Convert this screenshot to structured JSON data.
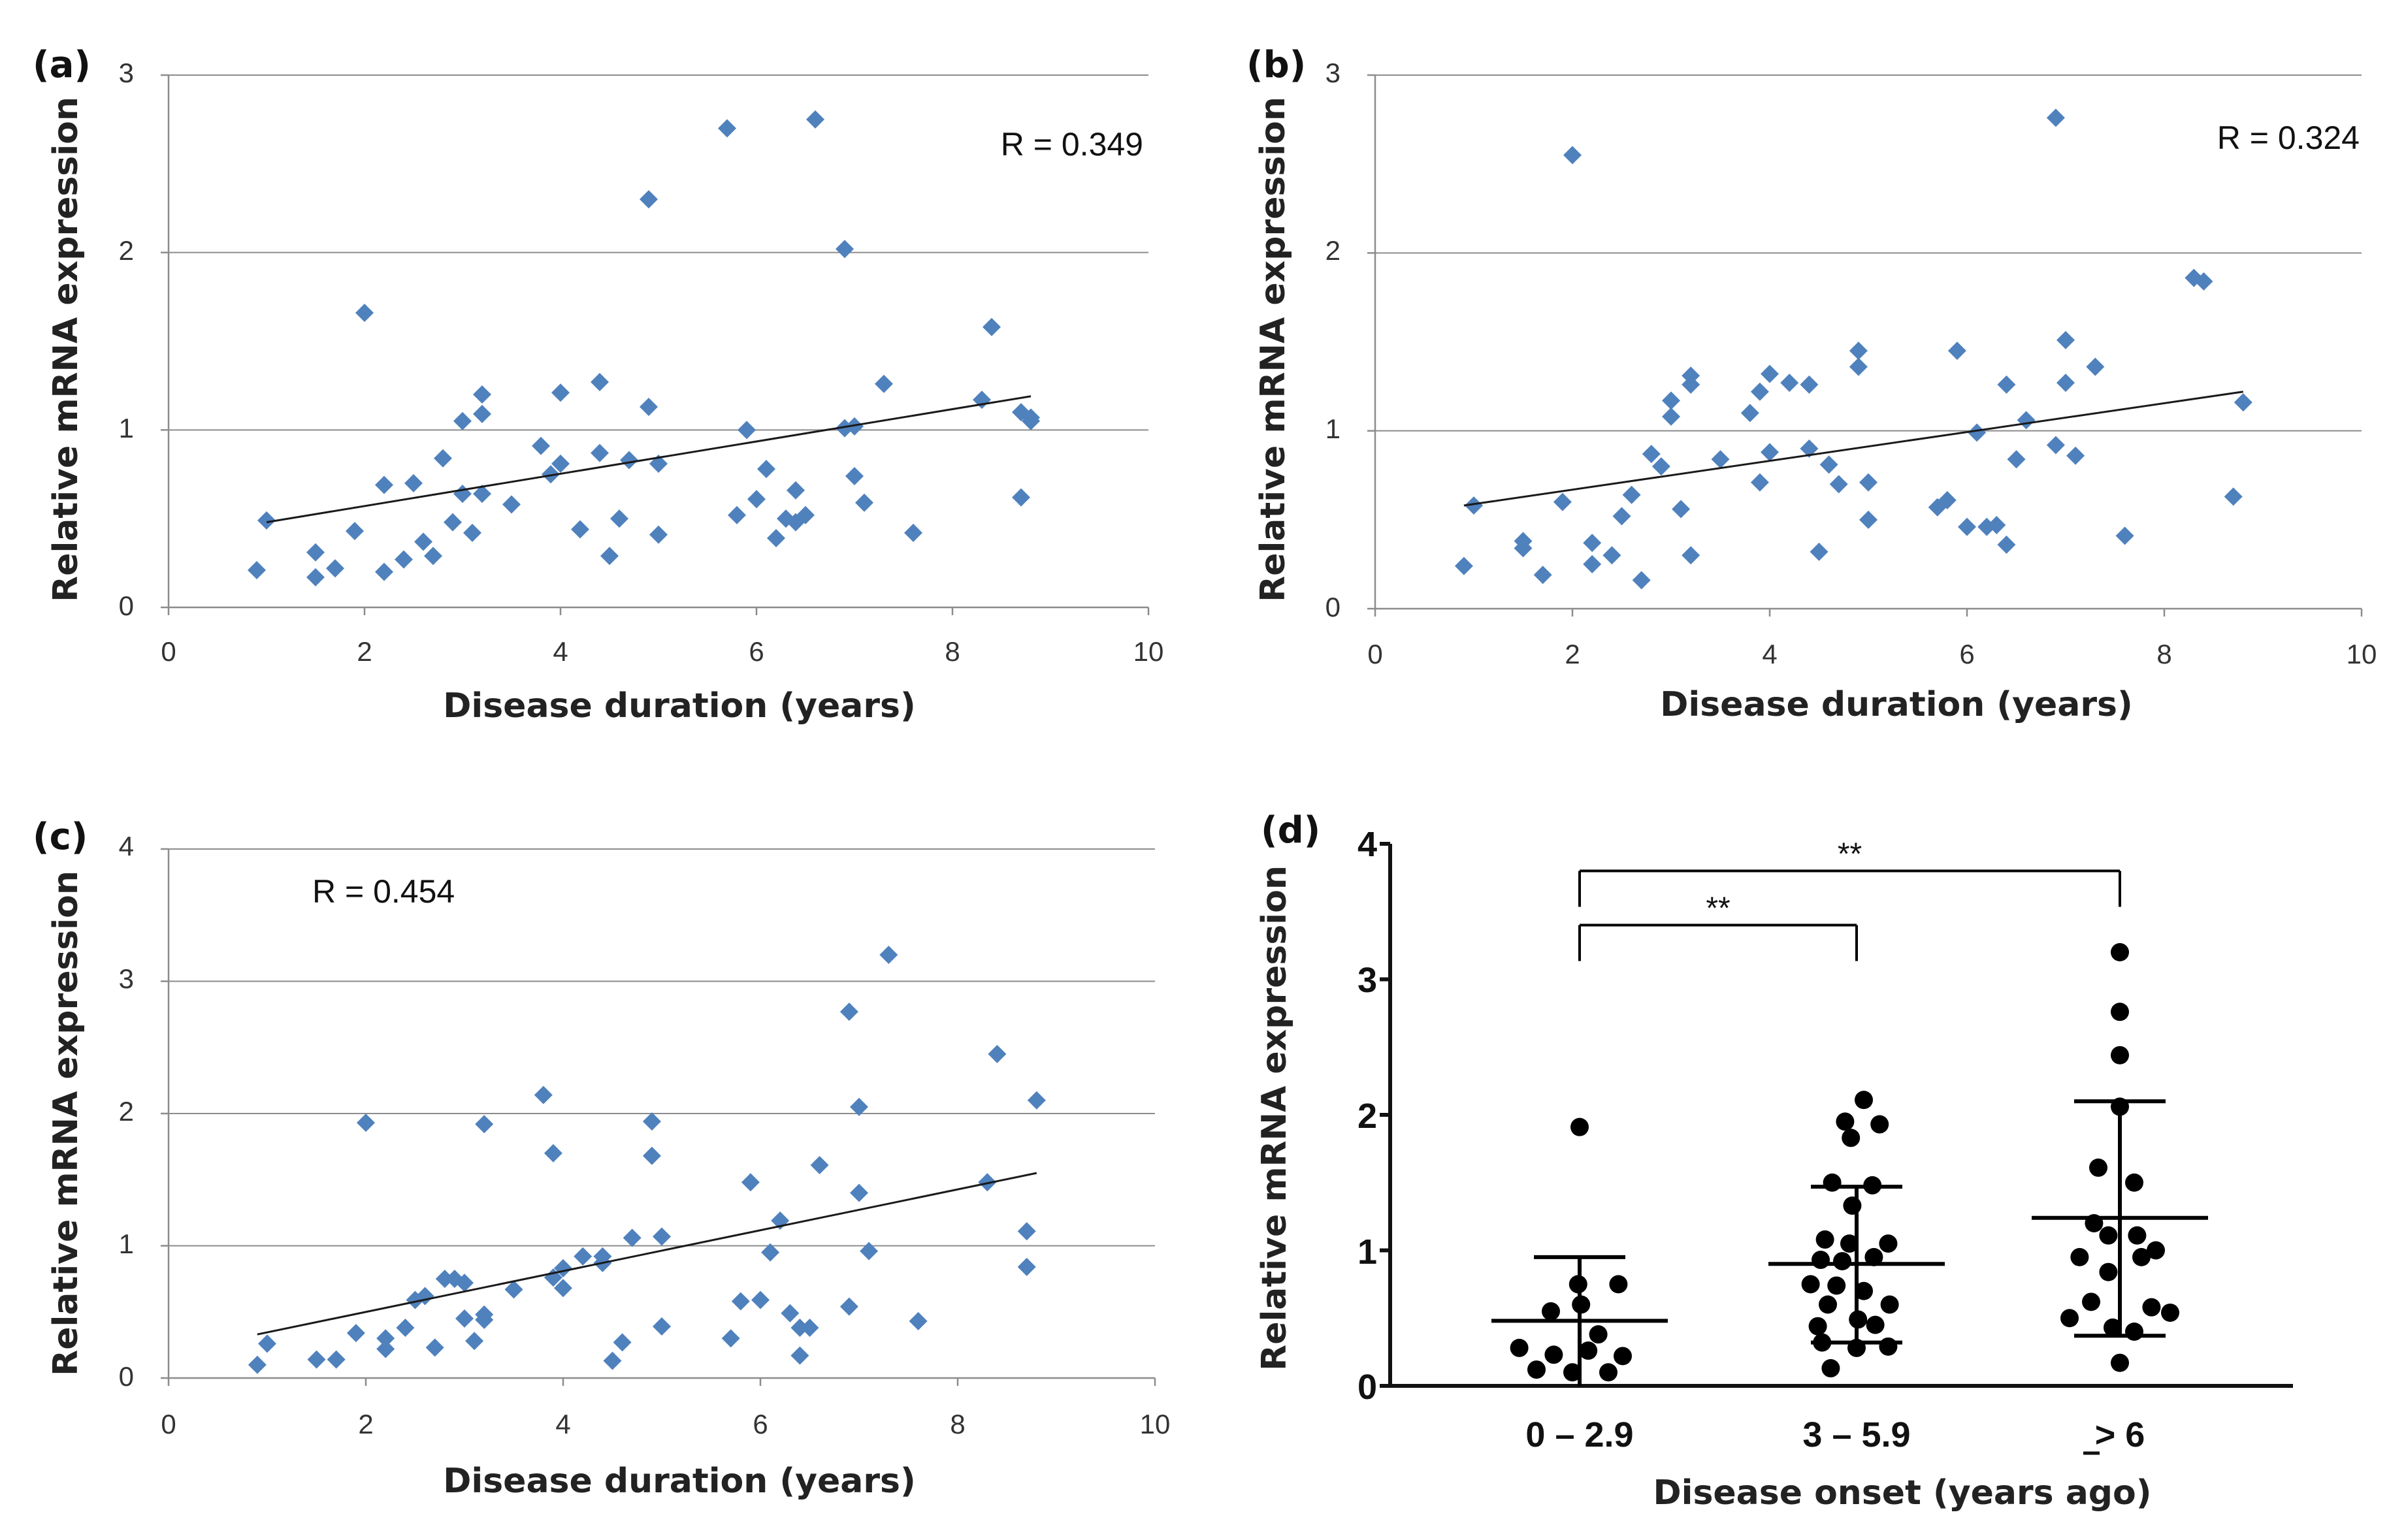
{
  "colors": {
    "diamond": "#4f81bd",
    "dot": "#000000",
    "grid": "#8c8c8c",
    "axis": "#8c8c8c",
    "trend": "#1a1a1a"
  },
  "chart_data": [
    {
      "type": "scatter",
      "panel_label": "(a)",
      "annotation": "R = 0.349",
      "xlabel": "Disease duration (years)",
      "ylabel": "Relative mRNA expression",
      "xlim": [
        0,
        10
      ],
      "ylim": [
        0,
        3
      ],
      "x_ticks": [
        "0",
        "2",
        "4",
        "6",
        "8",
        "10"
      ],
      "y_ticks": [
        "0",
        "1",
        "2",
        "3"
      ],
      "grid": true,
      "trendline": {
        "x": [
          1,
          8.8
        ],
        "y": [
          0.48,
          1.19
        ]
      },
      "points": [
        [
          0.9,
          0.21
        ],
        [
          1.0,
          0.49
        ],
        [
          1.5,
          0.31
        ],
        [
          1.5,
          0.17
        ],
        [
          1.7,
          0.22
        ],
        [
          1.9,
          0.43
        ],
        [
          2.0,
          1.66
        ],
        [
          2.2,
          0.69
        ],
        [
          2.2,
          0.2
        ],
        [
          2.4,
          0.27
        ],
        [
          2.5,
          0.7
        ],
        [
          2.6,
          0.37
        ],
        [
          2.7,
          0.29
        ],
        [
          2.8,
          0.84
        ],
        [
          2.9,
          0.48
        ],
        [
          3.0,
          1.05
        ],
        [
          3.0,
          0.64
        ],
        [
          3.1,
          0.42
        ],
        [
          3.2,
          1.2
        ],
        [
          3.2,
          1.09
        ],
        [
          3.2,
          0.64
        ],
        [
          3.5,
          0.58
        ],
        [
          3.8,
          0.91
        ],
        [
          3.9,
          0.75
        ],
        [
          4.0,
          1.21
        ],
        [
          4.0,
          0.81
        ],
        [
          4.2,
          0.44
        ],
        [
          4.4,
          1.27
        ],
        [
          4.4,
          0.87
        ],
        [
          4.5,
          0.29
        ],
        [
          4.6,
          0.5
        ],
        [
          4.7,
          0.83
        ],
        [
          4.9,
          2.3
        ],
        [
          4.9,
          1.13
        ],
        [
          5.0,
          0.41
        ],
        [
          5.0,
          0.81
        ],
        [
          5.7,
          2.7
        ],
        [
          5.8,
          0.52
        ],
        [
          5.9,
          1.0
        ],
        [
          6.0,
          0.61
        ],
        [
          6.1,
          0.78
        ],
        [
          6.2,
          0.39
        ],
        [
          6.3,
          0.5
        ],
        [
          6.4,
          0.66
        ],
        [
          6.4,
          0.48
        ],
        [
          6.5,
          0.52
        ],
        [
          6.6,
          2.75
        ],
        [
          6.9,
          2.02
        ],
        [
          6.9,
          1.01
        ],
        [
          7.0,
          1.02
        ],
        [
          7.0,
          0.74
        ],
        [
          7.1,
          0.59
        ],
        [
          7.3,
          1.26
        ],
        [
          7.6,
          0.42
        ],
        [
          8.3,
          1.17
        ],
        [
          8.4,
          1.58
        ],
        [
          8.7,
          1.1
        ],
        [
          8.7,
          0.62
        ],
        [
          8.8,
          1.07
        ],
        [
          8.8,
          1.05
        ]
      ]
    },
    {
      "type": "scatter",
      "panel_label": "(b)",
      "annotation": "R = 0.324",
      "xlabel": "Disease duration (years)",
      "ylabel": "Relative mRNA expression",
      "xlim": [
        0,
        10
      ],
      "ylim": [
        0,
        3
      ],
      "x_ticks": [
        "0",
        "2",
        "4",
        "6",
        "8",
        "10"
      ],
      "y_ticks": [
        "0",
        "1",
        "2",
        "3"
      ],
      "grid": true,
      "trendline": {
        "x": [
          0.9,
          8.8
        ],
        "y": [
          0.58,
          1.22
        ]
      },
      "points": [
        [
          0.9,
          0.24
        ],
        [
          1.0,
          0.58
        ],
        [
          1.5,
          0.38
        ],
        [
          1.5,
          0.34
        ],
        [
          1.7,
          0.19
        ],
        [
          1.9,
          0.6
        ],
        [
          2.0,
          2.55
        ],
        [
          2.2,
          0.37
        ],
        [
          2.2,
          0.25
        ],
        [
          2.4,
          0.3
        ],
        [
          2.5,
          0.52
        ],
        [
          2.6,
          0.64
        ],
        [
          2.7,
          0.16
        ],
        [
          2.8,
          0.87
        ],
        [
          2.9,
          0.8
        ],
        [
          3.0,
          1.17
        ],
        [
          3.0,
          1.08
        ],
        [
          3.1,
          0.56
        ],
        [
          3.2,
          1.31
        ],
        [
          3.2,
          1.26
        ],
        [
          3.2,
          0.3
        ],
        [
          3.5,
          0.84
        ],
        [
          3.8,
          1.1
        ],
        [
          3.9,
          1.22
        ],
        [
          3.9,
          0.71
        ],
        [
          4.0,
          1.32
        ],
        [
          4.0,
          0.88
        ],
        [
          4.2,
          1.27
        ],
        [
          4.4,
          1.26
        ],
        [
          4.4,
          0.9
        ],
        [
          4.5,
          0.32
        ],
        [
          4.6,
          0.81
        ],
        [
          4.7,
          0.7
        ],
        [
          4.9,
          1.45
        ],
        [
          4.9,
          1.36
        ],
        [
          5.0,
          0.71
        ],
        [
          5.0,
          0.5
        ],
        [
          5.7,
          0.57
        ],
        [
          5.8,
          0.61
        ],
        [
          5.9,
          1.45
        ],
        [
          6.0,
          0.46
        ],
        [
          6.1,
          0.99
        ],
        [
          6.2,
          0.46
        ],
        [
          6.3,
          0.47
        ],
        [
          6.4,
          1.26
        ],
        [
          6.4,
          0.36
        ],
        [
          6.5,
          0.84
        ],
        [
          6.6,
          1.06
        ],
        [
          6.9,
          2.76
        ],
        [
          6.9,
          0.92
        ],
        [
          7.0,
          1.51
        ],
        [
          7.0,
          1.27
        ],
        [
          7.1,
          0.86
        ],
        [
          7.3,
          1.36
        ],
        [
          7.6,
          0.41
        ],
        [
          8.3,
          1.86
        ],
        [
          8.4,
          1.84
        ],
        [
          8.7,
          0.63
        ],
        [
          8.8,
          1.16
        ]
      ]
    },
    {
      "type": "scatter",
      "panel_label": "(c)",
      "annotation": "R = 0.454",
      "xlabel": "Disease duration (years)",
      "ylabel": "Relative mRNA expression",
      "xlim": [
        0,
        10
      ],
      "ylim": [
        0,
        4
      ],
      "x_ticks": [
        "0",
        "2",
        "4",
        "6",
        "8",
        "10"
      ],
      "y_ticks": [
        "0",
        "1",
        "2",
        "3",
        "4"
      ],
      "grid": true,
      "trendline": {
        "x": [
          0.9,
          8.8
        ],
        "y": [
          0.33,
          1.55
        ]
      },
      "points": [
        [
          0.9,
          0.1
        ],
        [
          1.0,
          0.26
        ],
        [
          1.5,
          0.14
        ],
        [
          1.7,
          0.14
        ],
        [
          1.9,
          0.34
        ],
        [
          2.0,
          1.93
        ],
        [
          2.2,
          0.3
        ],
        [
          2.2,
          0.22
        ],
        [
          2.4,
          0.38
        ],
        [
          2.5,
          0.59
        ],
        [
          2.6,
          0.62
        ],
        [
          2.7,
          0.23
        ],
        [
          2.8,
          0.75
        ],
        [
          2.9,
          0.75
        ],
        [
          3.0,
          0.72
        ],
        [
          3.0,
          0.45
        ],
        [
          3.1,
          0.28
        ],
        [
          3.2,
          1.92
        ],
        [
          3.2,
          0.48
        ],
        [
          3.2,
          0.44
        ],
        [
          3.5,
          0.67
        ],
        [
          3.8,
          2.14
        ],
        [
          3.9,
          1.7
        ],
        [
          3.9,
          0.76
        ],
        [
          4.0,
          0.83
        ],
        [
          4.0,
          0.68
        ],
        [
          4.2,
          0.92
        ],
        [
          4.4,
          0.92
        ],
        [
          4.4,
          0.87
        ],
        [
          4.5,
          0.13
        ],
        [
          4.6,
          0.27
        ],
        [
          4.7,
          1.06
        ],
        [
          4.9,
          1.94
        ],
        [
          4.9,
          1.68
        ],
        [
          5.0,
          1.07
        ],
        [
          5.0,
          0.39
        ],
        [
          5.7,
          0.3
        ],
        [
          5.8,
          0.58
        ],
        [
          5.9,
          1.48
        ],
        [
          6.0,
          0.59
        ],
        [
          6.1,
          0.95
        ],
        [
          6.2,
          1.19
        ],
        [
          6.3,
          0.49
        ],
        [
          6.4,
          0.38
        ],
        [
          6.4,
          0.17
        ],
        [
          6.5,
          0.38
        ],
        [
          6.6,
          1.61
        ],
        [
          6.9,
          2.77
        ],
        [
          6.9,
          0.54
        ],
        [
          7.0,
          2.05
        ],
        [
          7.0,
          1.4
        ],
        [
          7.1,
          0.96
        ],
        [
          7.3,
          3.2
        ],
        [
          7.6,
          0.43
        ],
        [
          8.3,
          1.48
        ],
        [
          8.4,
          2.45
        ],
        [
          8.7,
          1.11
        ],
        [
          8.7,
          0.84
        ],
        [
          8.8,
          2.1
        ]
      ]
    },
    {
      "type": "scatter",
      "subtype": "dot-plot",
      "panel_label": "(d)",
      "xlabel": "Disease onset (years ago)",
      "ylabel": "Relative mRNA expression",
      "ylim": [
        0,
        4
      ],
      "y_ticks": [
        "0",
        "1",
        "2",
        "3",
        "4"
      ],
      "grid": false,
      "categories": [
        "0 – 2.9",
        "3 – 5.9",
        "> 6"
      ],
      "groups": [
        {
          "name": "0 – 2.9",
          "mean": 0.48,
          "sd_low": 0.0,
          "sd_high": 0.95,
          "points": [
            [
              -0.42,
              0.28
            ],
            [
              -0.18,
              0.23
            ],
            [
              0.06,
              0.26
            ],
            [
              0.3,
              0.22
            ],
            [
              -0.3,
              0.12
            ],
            [
              -0.05,
              0.1
            ],
            [
              0.2,
              0.1
            ],
            [
              0.13,
              0.38
            ],
            [
              -0.2,
              0.55
            ],
            [
              0.01,
              0.6
            ],
            [
              -0.01,
              0.75
            ],
            [
              0.27,
              0.75
            ],
            [
              0.0,
              1.91
            ]
          ]
        },
        {
          "name": "3 – 5.9",
          "mean": 0.9,
          "sd_low": 0.32,
          "sd_high": 1.47,
          "points": [
            [
              0.05,
              2.11
            ],
            [
              -0.08,
              1.95
            ],
            [
              0.16,
              1.93
            ],
            [
              -0.04,
              1.83
            ],
            [
              -0.17,
              1.5
            ],
            [
              0.11,
              1.48
            ],
            [
              -0.03,
              1.33
            ],
            [
              -0.22,
              1.08
            ],
            [
              0.22,
              1.05
            ],
            [
              -0.05,
              1.05
            ],
            [
              0.12,
              0.95
            ],
            [
              -0.25,
              0.93
            ],
            [
              -0.1,
              0.92
            ],
            [
              -0.32,
              0.75
            ],
            [
              -0.14,
              0.74
            ],
            [
              0.05,
              0.7
            ],
            [
              -0.2,
              0.6
            ],
            [
              0.23,
              0.6
            ],
            [
              0.01,
              0.49
            ],
            [
              -0.27,
              0.44
            ],
            [
              0.13,
              0.45
            ],
            [
              -0.24,
              0.32
            ],
            [
              0.22,
              0.29
            ],
            [
              0.0,
              0.28
            ],
            [
              -0.18,
              0.13
            ]
          ]
        },
        {
          "name": "> 6",
          "mean": 1.24,
          "sd_low": 0.37,
          "sd_high": 2.1,
          "points": [
            [
              0.0,
              3.2
            ],
            [
              0.0,
              2.76
            ],
            [
              0.0,
              2.44
            ],
            [
              0.0,
              2.06
            ],
            [
              -0.15,
              1.61
            ],
            [
              0.1,
              1.5
            ],
            [
              -0.18,
              1.2
            ],
            [
              0.12,
              1.11
            ],
            [
              -0.08,
              1.11
            ],
            [
              0.25,
              1.0
            ],
            [
              0.15,
              0.95
            ],
            [
              -0.28,
              0.95
            ],
            [
              -0.08,
              0.84
            ],
            [
              -0.2,
              0.62
            ],
            [
              0.22,
              0.58
            ],
            [
              0.35,
              0.54
            ],
            [
              -0.35,
              0.5
            ],
            [
              -0.05,
              0.43
            ],
            [
              0.1,
              0.4
            ],
            [
              0.0,
              0.17
            ]
          ]
        }
      ],
      "significance": [
        {
          "from": 0,
          "to": 1,
          "label": "**",
          "y": 3.4
        },
        {
          "from": 0,
          "to": 2,
          "label": "**",
          "y": 3.8
        }
      ]
    }
  ]
}
